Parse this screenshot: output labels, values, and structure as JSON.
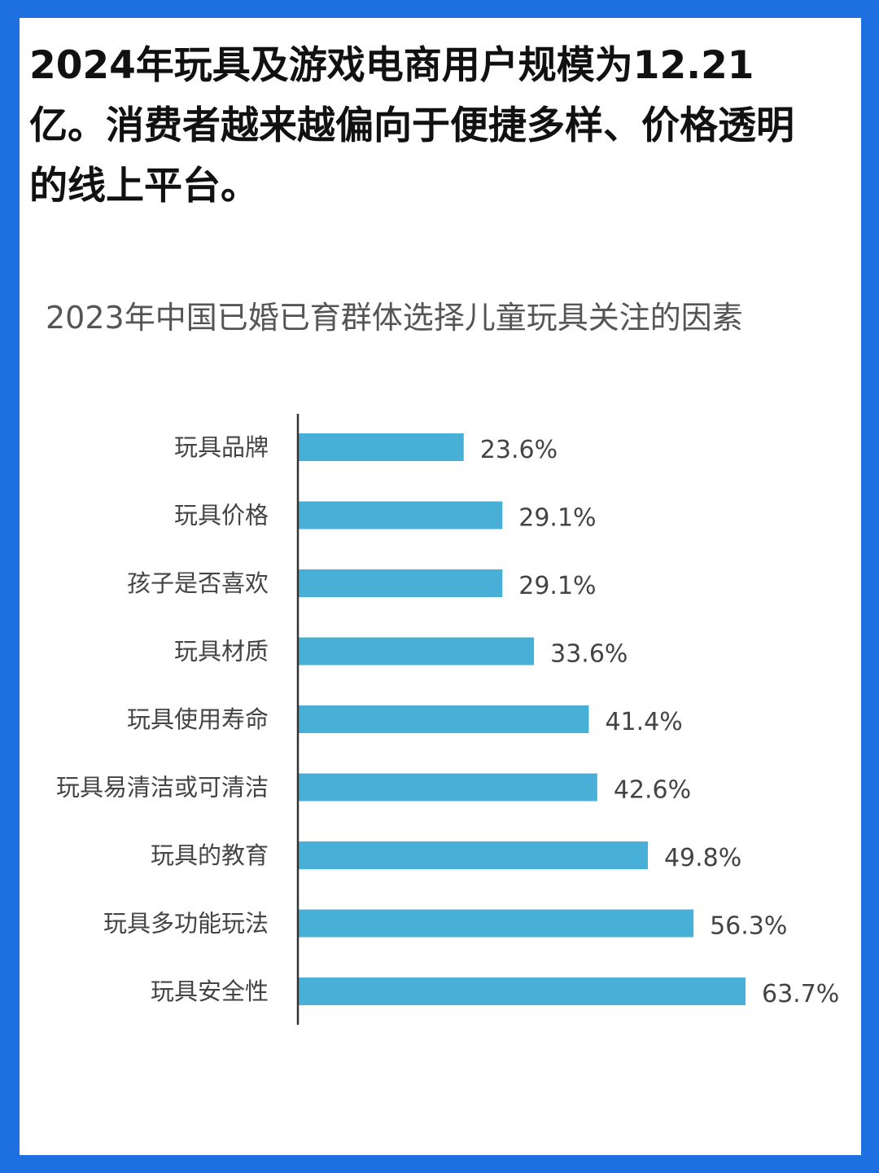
{
  "headline": "2024年玩具及游戏电商用户规模为12.21亿。消费者越来越偏向于便捷多样、价格透明的线上平台。",
  "colors": {
    "frame": "#1e6fe0",
    "bar": "#48afd6"
  },
  "chart_data": {
    "type": "bar",
    "orientation": "horizontal",
    "title": "2023年中国已婚已育群体选择儿童玩具关注的因素",
    "xlabel": "",
    "ylabel": "",
    "categories": [
      "玩具品牌",
      "玩具价格",
      "孩子是否喜欢",
      "玩具材质",
      "玩具使用寿命",
      "玩具易清洁或可清洁",
      "玩具的教育",
      "玩具多功能玩法",
      "玩具安全性"
    ],
    "values": [
      23.6,
      29.1,
      29.1,
      33.6,
      41.4,
      42.6,
      49.8,
      56.3,
      63.7
    ],
    "value_labels": [
      "23.6%",
      "29.1%",
      "29.1%",
      "33.6%",
      "41.4%",
      "42.6%",
      "49.8%",
      "56.3%",
      "63.7%"
    ],
    "xlim": [
      0,
      63.7
    ],
    "grid": false,
    "legend": "none"
  }
}
